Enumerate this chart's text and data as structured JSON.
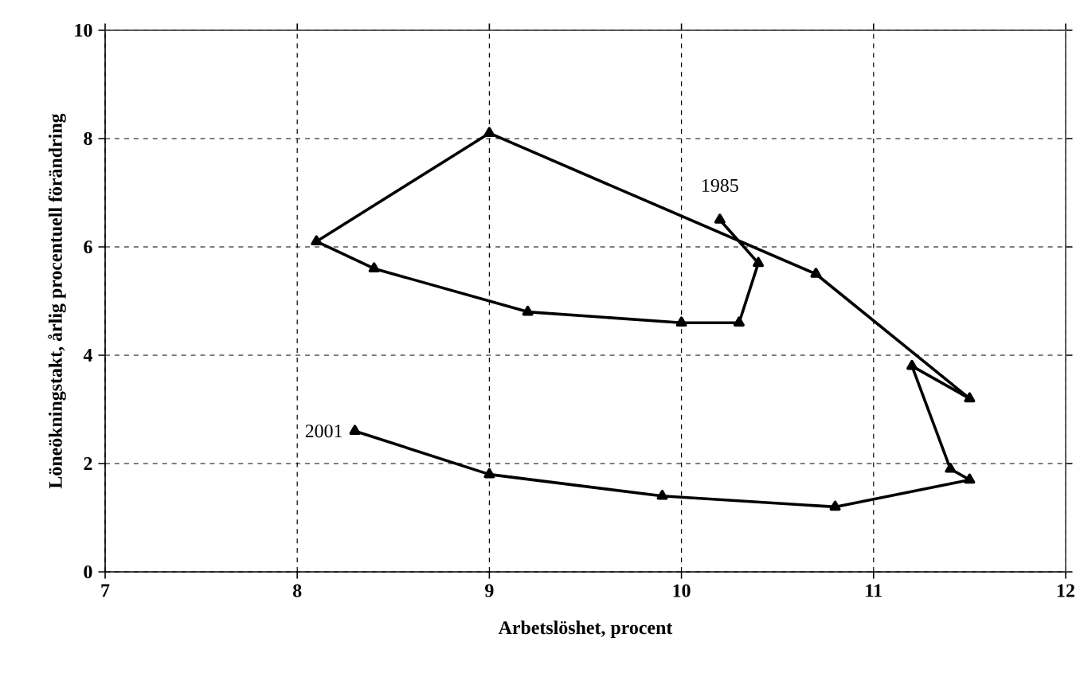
{
  "chart_data": {
    "type": "line",
    "xlabel": "Arbetslöshet, procent",
    "ylabel": "Löneökningstakt, årlig procentuell förändring",
    "series": [
      {
        "color": "#000000",
        "x": [
          10.2,
          10.4,
          10.3,
          10.0,
          9.2,
          8.4,
          8.1,
          9.0,
          10.7,
          11.5,
          11.2,
          11.4,
          11.5,
          10.8,
          9.9,
          9.0,
          8.3
        ],
        "values": [
          6.5,
          5.7,
          4.6,
          4.6,
          4.8,
          5.6,
          6.1,
          8.1,
          5.5,
          3.2,
          3.8,
          1.9,
          1.7,
          1.2,
          1.4,
          1.8,
          2.6
        ]
      }
    ],
    "xlim": [
      7,
      12
    ],
    "ylim": [
      0,
      10
    ],
    "xticks": [
      7,
      8,
      9,
      10,
      11,
      12
    ],
    "yticks": [
      0,
      2,
      4,
      6,
      8,
      10
    ],
    "grid": true,
    "marker": "triangle",
    "line_style": "solid",
    "annotations": [
      {
        "text": "1985",
        "x": 10.2,
        "y": 6.5
      },
      {
        "text": "2001",
        "x": 8.3,
        "y": 2.6
      }
    ]
  }
}
